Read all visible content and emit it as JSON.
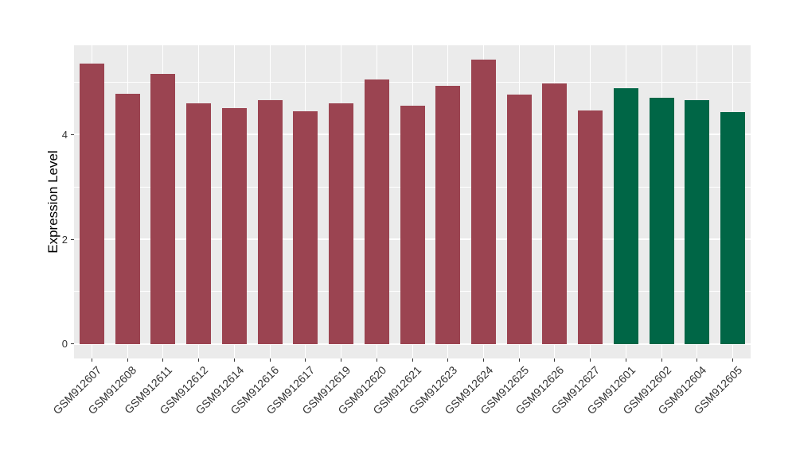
{
  "figure": {
    "background": "#FFFFFF",
    "panel_background": "#EBEBEB",
    "gridline_color": "#FFFFFF",
    "axis_text_color": "#333333",
    "axis_title_color": "#000000"
  },
  "chart_data": {
    "type": "bar",
    "title": "",
    "xlabel": "",
    "ylabel": "Expression Level",
    "legend": false,
    "grid": "white major+minor on gray panel",
    "categories": [
      "GSM912607",
      "GSM912608",
      "GSM912611",
      "GSM912612",
      "GSM912614",
      "GSM912616",
      "GSM912617",
      "GSM912619",
      "GSM912620",
      "GSM912621",
      "GSM912623",
      "GSM912624",
      "GSM912625",
      "GSM912626",
      "GSM912627",
      "GSM912601",
      "GSM912602",
      "GSM912604",
      "GSM912605"
    ],
    "values": [
      5.36,
      4.78,
      5.17,
      4.6,
      4.51,
      4.66,
      4.45,
      4.6,
      5.05,
      4.56,
      4.93,
      5.44,
      4.76,
      4.98,
      4.46,
      4.89,
      4.71,
      4.66,
      4.43
    ],
    "bar_colors": [
      "#9B4451",
      "#9B4451",
      "#9B4451",
      "#9B4451",
      "#9B4451",
      "#9B4451",
      "#9B4451",
      "#9B4451",
      "#9B4451",
      "#9B4451",
      "#9B4451",
      "#9B4451",
      "#9B4451",
      "#9B4451",
      "#9B4451",
      "#006646",
      "#006646",
      "#006646",
      "#006646"
    ],
    "color_group_1": "#9B4451",
    "color_group_2": "#006646",
    "yticks": [
      0,
      2,
      4
    ],
    "ytick_labels": [
      "0",
      "2",
      "4"
    ],
    "minor_yticks": [
      1,
      3,
      5
    ],
    "ylim": [
      -0.28,
      5.71
    ]
  }
}
